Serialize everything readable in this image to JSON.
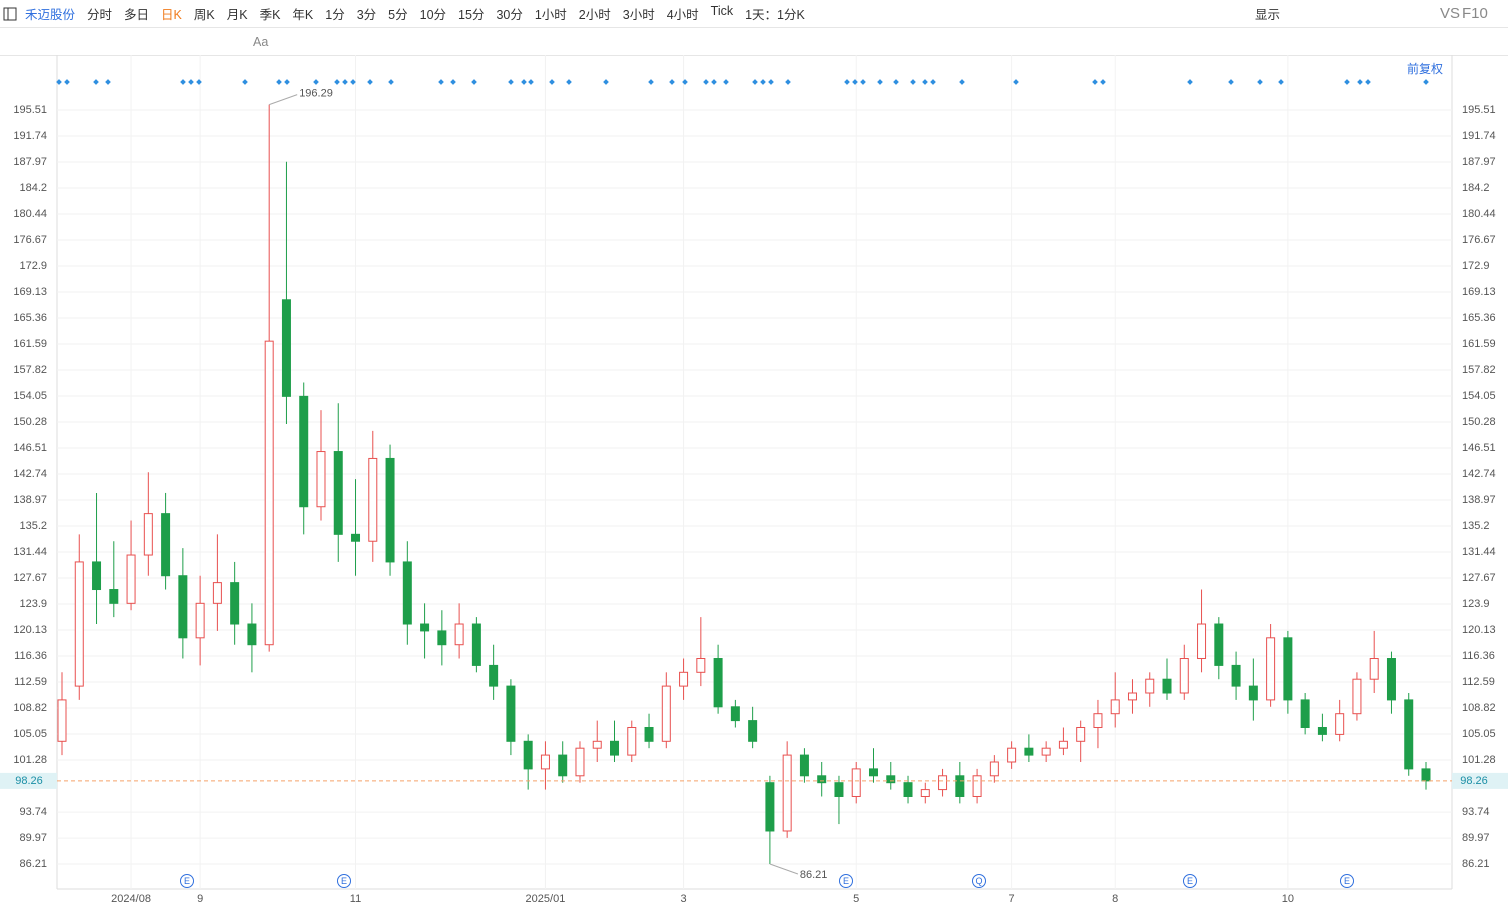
{
  "toolbar": {
    "stock": "禾迈股份",
    "periods": [
      "分时",
      "多日",
      "日K",
      "周K",
      "月K",
      "季K",
      "年K",
      "1分",
      "3分",
      "5分",
      "10分",
      "15分",
      "30分",
      "1小时",
      "2小时",
      "3小时",
      "4小时",
      "Tick",
      "1天：1分K"
    ],
    "display": "显示",
    "vs": "VS",
    "f10": "F10",
    "text_tool": "Aa",
    "adjust": "前复权"
  },
  "chart_data": {
    "type": "candlestick",
    "categories": [
      null,
      null,
      null,
      null,
      "2024/08",
      null,
      null,
      null,
      "9",
      null,
      null,
      null,
      null,
      null,
      null,
      null,
      null,
      "11",
      null,
      null,
      null,
      null,
      null,
      null,
      null,
      null,
      null,
      null,
      "2025/01",
      null,
      null,
      null,
      null,
      null,
      null,
      null,
      "3",
      null,
      null,
      null,
      null,
      null,
      null,
      null,
      null,
      null,
      "5",
      null,
      null,
      null,
      null,
      null,
      null,
      null,
      null,
      "7",
      null,
      null,
      null,
      null,
      null,
      "8",
      null,
      null,
      null,
      null,
      null,
      null,
      null,
      null,
      null,
      "10",
      null,
      null,
      null,
      null,
      null,
      null,
      null,
      null
    ],
    "open": [
      104,
      112,
      130,
      126,
      124,
      131,
      137,
      128,
      119,
      124,
      127,
      121,
      118,
      168,
      154,
      138,
      146,
      134,
      133,
      145,
      130,
      121,
      120,
      118,
      121,
      115,
      112,
      104,
      100,
      102,
      99,
      103,
      104,
      102,
      106,
      104,
      112,
      114,
      116,
      109,
      107,
      98,
      91,
      102,
      99,
      98,
      96,
      100,
      99,
      98,
      96,
      97,
      99,
      96,
      99,
      101,
      103,
      102,
      103,
      104,
      106,
      108,
      110,
      111,
      113,
      111,
      116,
      121,
      115,
      112,
      110,
      119,
      110,
      106,
      105,
      108,
      113,
      116,
      110,
      100
    ],
    "high": [
      114,
      134,
      140,
      133,
      136,
      143,
      140,
      132,
      128,
      134,
      130,
      124,
      196.29,
      188,
      156,
      152,
      153,
      142,
      149,
      147,
      133,
      124,
      123,
      124,
      122,
      118,
      113,
      105,
      104,
      104,
      104,
      107,
      107,
      107,
      108,
      114,
      116,
      122,
      118,
      110,
      109,
      99,
      104,
      103,
      101,
      99,
      101,
      103,
      101,
      99,
      98,
      100,
      101,
      100,
      102,
      104,
      105,
      104,
      106,
      107,
      110,
      114,
      113,
      114,
      116,
      118,
      126,
      122,
      117,
      116,
      121,
      120,
      111,
      108,
      110,
      114,
      120,
      117,
      111,
      101
    ],
    "low": [
      102,
      110,
      121,
      122,
      123,
      128,
      126,
      116,
      115,
      120,
      118,
      114,
      117,
      150,
      134,
      136,
      130,
      128,
      130,
      128,
      118,
      116,
      115,
      116,
      114,
      110,
      102,
      97,
      97,
      98,
      98,
      101,
      101,
      101,
      103,
      103,
      110,
      112,
      108,
      106,
      103,
      86.21,
      90,
      98,
      96,
      92,
      95,
      98,
      97,
      95,
      95,
      96,
      95,
      95,
      98,
      100,
      101,
      101,
      102,
      101,
      103,
      106,
      108,
      109,
      110,
      110,
      114,
      113,
      110,
      107,
      109,
      108,
      105,
      104,
      104,
      107,
      111,
      108,
      99,
      97
    ],
    "close": [
      110,
      130,
      126,
      124,
      131,
      137,
      128,
      119,
      124,
      127,
      121,
      118,
      162,
      154,
      138,
      146,
      134,
      133,
      145,
      130,
      121,
      120,
      118,
      121,
      115,
      112,
      104,
      100,
      102,
      99,
      103,
      104,
      102,
      106,
      104,
      112,
      114,
      116,
      109,
      107,
      104,
      91,
      102,
      99,
      98,
      96,
      100,
      99,
      98,
      96,
      97,
      99,
      96,
      99,
      101,
      103,
      102,
      103,
      104,
      106,
      108,
      110,
      111,
      113,
      111,
      116,
      121,
      115,
      112,
      110,
      119,
      110,
      106,
      105,
      108,
      113,
      116,
      110,
      100,
      98.26
    ],
    "up_color": "#e8504f",
    "down_color": "#1e9e4a",
    "ylim": [
      82.59,
      203.48
    ],
    "yticks": [
      86.21,
      89.97,
      93.74,
      101.28,
      105.05,
      108.82,
      112.59,
      116.36,
      120.13,
      123.9,
      127.67,
      131.44,
      135.2,
      138.97,
      142.74,
      146.51,
      150.28,
      154.05,
      157.82,
      161.59,
      165.36,
      169.13,
      172.9,
      176.67,
      180.44,
      184.2,
      187.97,
      191.74,
      195.51
    ],
    "last_price": 98.26,
    "last_color": "#f5a26a",
    "grid": true,
    "events": [
      "E",
      "E",
      "E",
      "Q",
      "E",
      "E"
    ]
  }
}
